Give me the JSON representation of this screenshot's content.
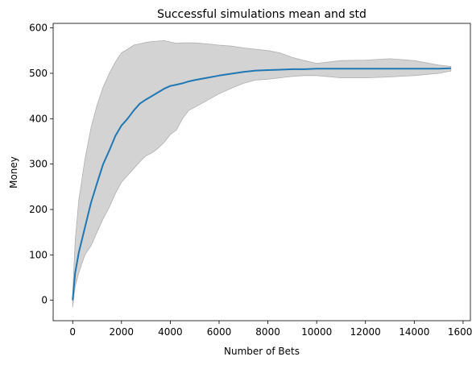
{
  "chart_data": {
    "type": "line",
    "title": "Successful simulations mean and std",
    "xlabel": "Number of Bets",
    "ylabel": "Money",
    "xlim": [
      -800,
      16300
    ],
    "ylim": [
      -45,
      610
    ],
    "xticks": [
      0,
      2000,
      4000,
      6000,
      8000,
      10000,
      12000,
      14000,
      16000
    ],
    "yticks": [
      0,
      100,
      200,
      300,
      400,
      500,
      600
    ],
    "grid": false,
    "legend": "none",
    "colors": {
      "mean": "#1f77b4",
      "band": "#d3d3d3",
      "band_edge": "#b0b0b0"
    },
    "series": [
      {
        "role": "mean",
        "x": [
          0,
          100,
          250,
          500,
          750,
          1000,
          1250,
          1500,
          1750,
          2000,
          2250,
          2500,
          2750,
          3000,
          3250,
          3500,
          3750,
          4000,
          4250,
          4500,
          4750,
          5000,
          5500,
          6000,
          6500,
          7000,
          7500,
          8000,
          8500,
          9000,
          9500,
          10000,
          11000,
          12000,
          13000,
          14000,
          15000,
          15500
        ],
        "y": [
          0,
          60,
          105,
          160,
          215,
          258,
          300,
          330,
          362,
          385,
          400,
          418,
          433,
          442,
          450,
          458,
          466,
          472,
          475,
          478,
          482,
          485,
          490,
          495,
          499,
          503,
          506,
          507,
          508,
          509,
          509,
          510,
          510,
          510,
          510,
          510,
          510,
          511
        ]
      },
      {
        "role": "std_upper",
        "x": [
          0,
          100,
          250,
          500,
          750,
          1000,
          1250,
          1500,
          1750,
          2000,
          2250,
          2500,
          2750,
          3000,
          3250,
          3500,
          3750,
          4000,
          4250,
          4500,
          4750,
          5000,
          5500,
          6000,
          6500,
          7000,
          7500,
          8000,
          8500,
          9000,
          9500,
          10000,
          11000,
          12000,
          13000,
          14000,
          15000,
          15500
        ],
        "y": [
          10,
          130,
          220,
          310,
          380,
          430,
          470,
          500,
          525,
          545,
          553,
          562,
          565,
          568,
          570,
          571,
          572,
          569,
          566,
          567,
          567,
          567,
          565,
          562,
          560,
          556,
          553,
          550,
          545,
          535,
          528,
          522,
          528,
          529,
          532,
          528,
          518,
          515
        ]
      },
      {
        "role": "std_lower",
        "x": [
          0,
          100,
          250,
          500,
          750,
          1000,
          1250,
          1500,
          1750,
          2000,
          2250,
          2500,
          2750,
          3000,
          3250,
          3500,
          3750,
          4000,
          4250,
          4500,
          4750,
          5000,
          5500,
          6000,
          6500,
          7000,
          7500,
          8000,
          8500,
          9000,
          9500,
          10000,
          11000,
          12000,
          13000,
          14000,
          15000,
          15500
        ],
        "y": [
          -15,
          30,
          60,
          100,
          120,
          150,
          180,
          205,
          235,
          260,
          275,
          290,
          305,
          318,
          325,
          335,
          348,
          365,
          375,
          400,
          418,
          425,
          440,
          455,
          467,
          478,
          485,
          487,
          490,
          493,
          495,
          495,
          490,
          490,
          492,
          495,
          500,
          505
        ]
      }
    ]
  }
}
